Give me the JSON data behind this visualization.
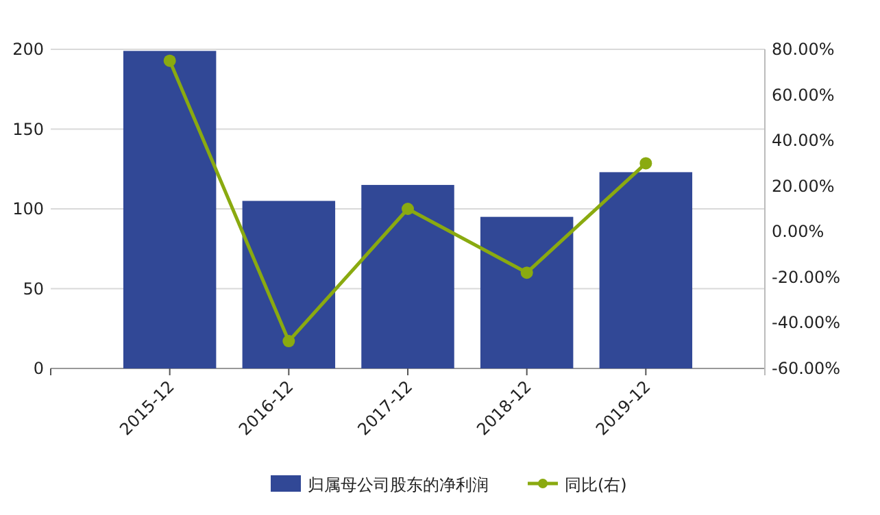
{
  "chart_data": {
    "type": "bar",
    "categories": [
      "2015-12",
      "2016-12",
      "2017-12",
      "2018-12",
      "2019-12"
    ],
    "series": [
      {
        "name": "归属母公司股东的净利润",
        "color": "#314896",
        "values": [
          199,
          105,
          115,
          95,
          123
        ]
      },
      {
        "name": "同比(右)",
        "type": "line",
        "axis": "y2",
        "color": "#8aaa10",
        "marker": "circle",
        "values": [
          75,
          -48,
          10,
          -18,
          30
        ]
      }
    ],
    "ylim": [
      0,
      200
    ],
    "yticks": [
      0,
      50,
      100,
      150,
      200
    ],
    "y2lim": [
      -60,
      80
    ],
    "y2ticks": [
      {
        "value": -60,
        "label": "-60.00%"
      },
      {
        "value": -40,
        "label": "-40.00%"
      },
      {
        "value": -20,
        "label": "-20.00%"
      },
      {
        "value": 0,
        "label": "0.00%"
      },
      {
        "value": 20,
        "label": "20.00%"
      },
      {
        "value": 40,
        "label": "40.00%"
      },
      {
        "value": 60,
        "label": "60.00%"
      },
      {
        "value": 80,
        "label": "80.00%"
      }
    ],
    "grid": "y",
    "legend": "bottom"
  }
}
